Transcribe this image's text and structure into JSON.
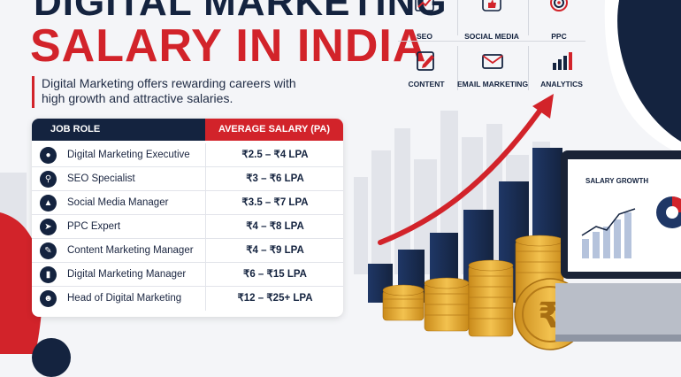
{
  "header": {
    "title_line1": "DIGITAL MARKETING",
    "title_line2": "SALARY IN INDIA",
    "subtitle": "Digital Marketing offers rewarding careers with high growth and attractive salaries."
  },
  "table": {
    "col_role": "JOB ROLE",
    "col_salary": "AVERAGE SALARY (PA)",
    "rows": [
      {
        "role": "Digital Marketing Executive",
        "salary": "₹2.5 – ₹4 LPA",
        "icon": "user-icon"
      },
      {
        "role": "SEO Specialist",
        "salary": "₹3 – ₹6 LPA",
        "icon": "search-icon"
      },
      {
        "role": "Social Media Manager",
        "salary": "₹3.5 – ₹7 LPA",
        "icon": "thumbs-up-icon"
      },
      {
        "role": "PPC Expert",
        "salary": "₹4 – ₹8 LPA",
        "icon": "cursor-icon"
      },
      {
        "role": "Content Marketing Manager",
        "salary": "₹4 – ₹9 LPA",
        "icon": "pencil-icon"
      },
      {
        "role": "Digital Marketing Manager",
        "salary": "₹6 – ₹15 LPA",
        "icon": "bar-chart-icon"
      },
      {
        "role": "Head of Digital Marketing",
        "salary": "₹12 – ₹25+ LPA",
        "icon": "team-icon"
      }
    ]
  },
  "services": [
    {
      "label": "SEO",
      "icon": "seo-chart-icon"
    },
    {
      "label": "SOCIAL MEDIA",
      "icon": "social-like-icon"
    },
    {
      "label": "PPC",
      "icon": "target-icon"
    },
    {
      "label": "CONTENT",
      "icon": "edit-icon"
    },
    {
      "label": "EMAIL MARKETING",
      "icon": "envelope-icon"
    },
    {
      "label": "ANALYTICS",
      "icon": "analytics-icon"
    }
  ],
  "laptop": {
    "screen_title": "SALARY GROWTH"
  },
  "colors": {
    "navy": "#14233f",
    "red": "#d2232a",
    "gold": "#e8a92c"
  }
}
